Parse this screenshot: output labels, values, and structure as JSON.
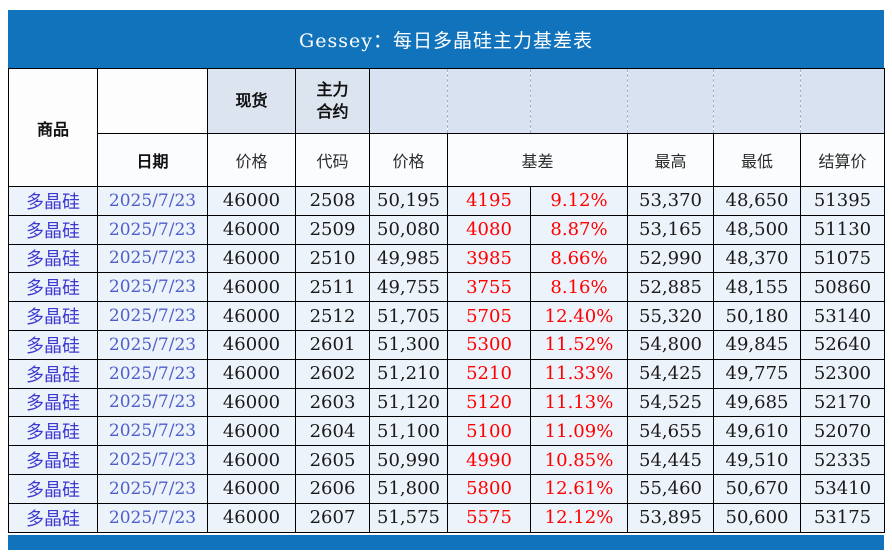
{
  "title": "Gessey：每日多晶硅主力基差表",
  "colors": {
    "header_bar_blue": "#1173bb",
    "footer_bar_blue": "#1173bb",
    "subheader_fill": "#dce4f0",
    "band_fill": "#d9e2f1",
    "row_fill": "#edf3fa",
    "commodity_text": "#3d3ad2",
    "date_text": "#4d5fc9",
    "basis_red": "#ff0000",
    "value_text": "#1a1a1a"
  },
  "header": {
    "commodity": "商品",
    "date": "日期",
    "spot": "现货",
    "main_contract": [
      "主力",
      "合约"
    ],
    "spot_price": "价格",
    "code": "代码",
    "price": "价格",
    "basis": "基差",
    "high": "最高",
    "low": "最低",
    "settlement": "结算价"
  },
  "rows": [
    {
      "commodity": "多晶硅",
      "date": "2025/7/23",
      "spot_price": "46000",
      "code": "2508",
      "price": "50,195",
      "basis": "4195",
      "basis_pct": "9.12%",
      "high": "53,370",
      "low": "48,650",
      "settlement": "51395"
    },
    {
      "commodity": "多晶硅",
      "date": "2025/7/23",
      "spot_price": "46000",
      "code": "2509",
      "price": "50,080",
      "basis": "4080",
      "basis_pct": "8.87%",
      "high": "53,165",
      "low": "48,500",
      "settlement": "51130"
    },
    {
      "commodity": "多晶硅",
      "date": "2025/7/23",
      "spot_price": "46000",
      "code": "2510",
      "price": "49,985",
      "basis": "3985",
      "basis_pct": "8.66%",
      "high": "52,990",
      "low": "48,370",
      "settlement": "51075"
    },
    {
      "commodity": "多晶硅",
      "date": "2025/7/23",
      "spot_price": "46000",
      "code": "2511",
      "price": "49,755",
      "basis": "3755",
      "basis_pct": "8.16%",
      "high": "52,885",
      "low": "48,155",
      "settlement": "50860"
    },
    {
      "commodity": "多晶硅",
      "date": "2025/7/23",
      "spot_price": "46000",
      "code": "2512",
      "price": "51,705",
      "basis": "5705",
      "basis_pct": "12.40%",
      "high": "55,320",
      "low": "50,180",
      "settlement": "53140"
    },
    {
      "commodity": "多晶硅",
      "date": "2025/7/23",
      "spot_price": "46000",
      "code": "2601",
      "price": "51,300",
      "basis": "5300",
      "basis_pct": "11.52%",
      "high": "54,800",
      "low": "49,845",
      "settlement": "52640"
    },
    {
      "commodity": "多晶硅",
      "date": "2025/7/23",
      "spot_price": "46000",
      "code": "2602",
      "price": "51,210",
      "basis": "5210",
      "basis_pct": "11.33%",
      "high": "54,425",
      "low": "49,775",
      "settlement": "52300"
    },
    {
      "commodity": "多晶硅",
      "date": "2025/7/23",
      "spot_price": "46000",
      "code": "2603",
      "price": "51,120",
      "basis": "5120",
      "basis_pct": "11.13%",
      "high": "54,525",
      "low": "49,685",
      "settlement": "52170"
    },
    {
      "commodity": "多晶硅",
      "date": "2025/7/23",
      "spot_price": "46000",
      "code": "2604",
      "price": "51,100",
      "basis": "5100",
      "basis_pct": "11.09%",
      "high": "54,655",
      "low": "49,610",
      "settlement": "52070"
    },
    {
      "commodity": "多晶硅",
      "date": "2025/7/23",
      "spot_price": "46000",
      "code": "2605",
      "price": "50,990",
      "basis": "4990",
      "basis_pct": "10.85%",
      "high": "54,445",
      "low": "49,510",
      "settlement": "52335"
    },
    {
      "commodity": "多晶硅",
      "date": "2025/7/23",
      "spot_price": "46000",
      "code": "2606",
      "price": "51,800",
      "basis": "5800",
      "basis_pct": "12.61%",
      "high": "55,460",
      "low": "50,670",
      "settlement": "53410"
    },
    {
      "commodity": "多晶硅",
      "date": "2025/7/23",
      "spot_price": "46000",
      "code": "2607",
      "price": "51,575",
      "basis": "5575",
      "basis_pct": "12.12%",
      "high": "53,895",
      "low": "50,600",
      "settlement": "53175"
    }
  ]
}
